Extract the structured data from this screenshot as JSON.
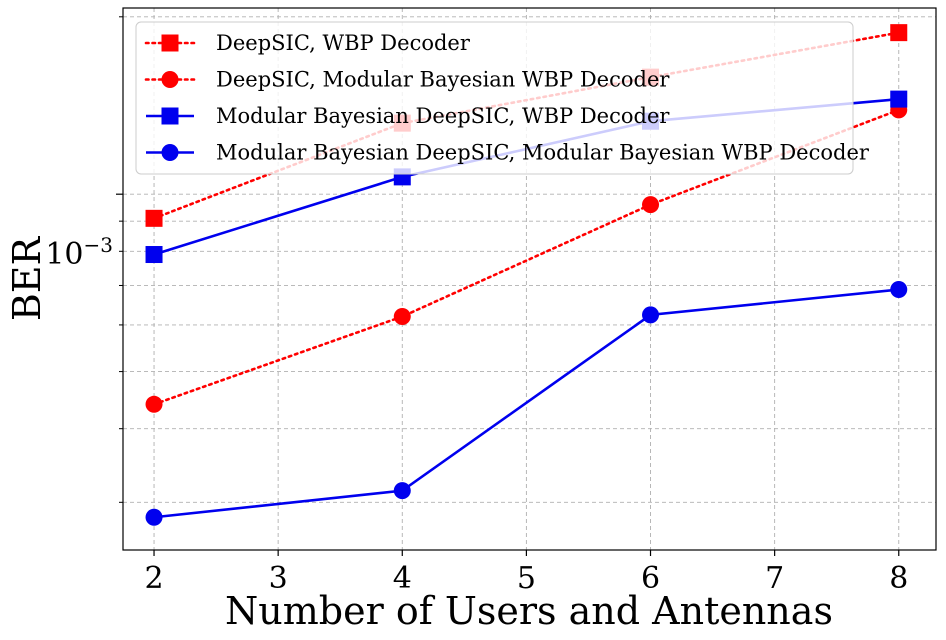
{
  "chart_data": {
    "type": "line",
    "title": "",
    "xlabel": "Number of Users and Antennas",
    "ylabel": "BER",
    "x": [
      2,
      4,
      6,
      8
    ],
    "x_ticks": [
      "2",
      "3",
      "4",
      "5",
      "6",
      "7",
      "8"
    ],
    "y_tick_major": {
      "base": "10",
      "exponent": "−3",
      "value": 0.001
    },
    "xlim": [
      1.75,
      8.3
    ],
    "ylim": [
      0.000249,
      0.00207
    ],
    "yscale": "log",
    "grid": true,
    "legend_position": "top-left",
    "series": [
      {
        "name": "DeepSIC, WBP Decoder",
        "color": "#ff0000",
        "linestyle": "dotted",
        "marker": "square",
        "values": [
          0.00091,
          0.00132,
          0.00158,
          0.00188
        ]
      },
      {
        "name": "DeepSIC, Modular Bayesian WBP Decoder",
        "color": "#ff0000",
        "linestyle": "dotted",
        "marker": "circle",
        "values": [
          0.00044,
          0.00062,
          0.00096,
          0.00139
        ]
      },
      {
        "name": "Modular Bayesian DeepSIC, WBP Decoder",
        "color": "#0000ee",
        "linestyle": "solid",
        "marker": "square",
        "values": [
          0.00079,
          0.00107,
          0.00133,
          0.00145
        ]
      },
      {
        "name": "Modular Bayesian DeepSIC, Modular Bayesian WBP Decoder",
        "color": "#0000ee",
        "linestyle": "solid",
        "marker": "circle",
        "values": [
          0.000283,
          0.000314,
          0.000624,
          0.000689
        ]
      }
    ]
  }
}
